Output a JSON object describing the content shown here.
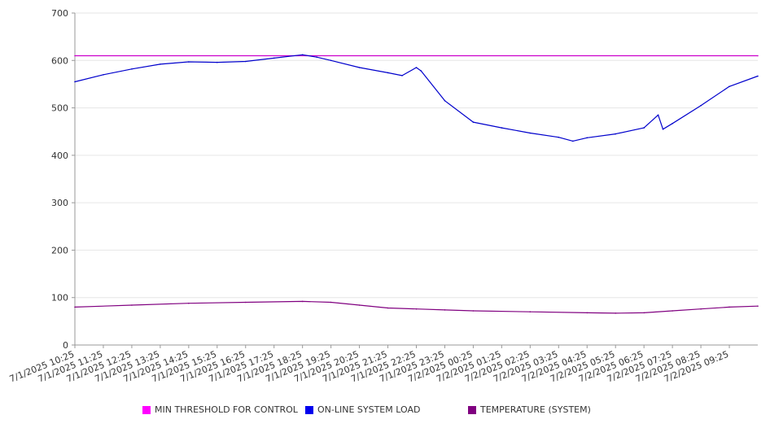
{
  "chart_data": {
    "type": "line",
    "title": "",
    "xlabel": "",
    "ylabel": "",
    "ylim": [
      0,
      700
    ],
    "y_ticks": [
      "0",
      "100",
      "200",
      "300",
      "400",
      "500",
      "600",
      "700"
    ],
    "x_ticks": [
      "7/1/2025 10:25",
      "7/1/2025 11:25",
      "7/1/2025 12:25",
      "7/1/2025 13:25",
      "7/1/2025 14:25",
      "7/1/2025 15:25",
      "7/1/2025 16:25",
      "7/1/2025 17:25",
      "7/1/2025 18:25",
      "7/1/2025 19:25",
      "7/1/2025 20:25",
      "7/1/2025 21:25",
      "7/1/2025 22:25",
      "7/1/2025 23:25",
      "7/2/2025 00:25",
      "7/2/2025 01:25",
      "7/2/2025 02:25",
      "7/2/2025 03:25",
      "7/2/2025 04:25",
      "7/2/2025 05:25",
      "7/2/2025 06:25",
      "7/2/2025 07:25",
      "7/2/2025 08:25",
      "7/2/2025 09:25"
    ],
    "x_start": "7/1/2025 10:25",
    "x_end": "7/2/2025 10:25",
    "grid": true,
    "legend_position": "bottom",
    "series": [
      {
        "name": "MIN THRESHOLD FOR CONTROL",
        "color": "#cc00cc",
        "x": [
          "7/1/2025 10:25",
          "7/2/2025 10:25"
        ],
        "values": [
          610,
          610
        ]
      },
      {
        "name": "ON-LINE SYSTEM LOAD",
        "color": "#0000cc",
        "x": [
          "7/1/2025 10:25",
          "7/1/2025 11:25",
          "7/1/2025 12:25",
          "7/1/2025 13:25",
          "7/1/2025 14:25",
          "7/1/2025 15:25",
          "7/1/2025 16:25",
          "7/1/2025 17:25",
          "7/1/2025 18:25",
          "7/1/2025 18:55",
          "7/1/2025 19:25",
          "7/1/2025 20:25",
          "7/1/2025 21:25",
          "7/1/2025 21:55",
          "7/1/2025 22:25",
          "7/1/2025 22:35",
          "7/1/2025 23:25",
          "7/2/2025 00:25",
          "7/2/2025 01:25",
          "7/2/2025 02:25",
          "7/2/2025 03:25",
          "7/2/2025 03:55",
          "7/2/2025 04:25",
          "7/2/2025 05:25",
          "7/2/2025 06:25",
          "7/2/2025 06:55",
          "7/2/2025 07:05",
          "7/2/2025 07:25",
          "7/2/2025 08:25",
          "7/2/2025 09:25",
          "7/2/2025 10:25"
        ],
        "values": [
          555,
          570,
          582,
          592,
          597,
          596,
          598,
          605,
          612,
          607,
          600,
          585,
          574,
          568,
          585,
          578,
          515,
          470,
          458,
          447,
          438,
          430,
          437,
          445,
          458,
          485,
          455,
          467,
          505,
          545,
          567
        ]
      },
      {
        "name": "TEMPERATURE (SYSTEM)",
        "color": "#800080",
        "x": [
          "7/1/2025 10:25",
          "7/1/2025 12:25",
          "7/1/2025 14:25",
          "7/1/2025 16:25",
          "7/1/2025 18:25",
          "7/1/2025 19:25",
          "7/1/2025 20:25",
          "7/1/2025 21:25",
          "7/1/2025 22:25",
          "7/1/2025 23:25",
          "7/2/2025 00:25",
          "7/2/2025 02:25",
          "7/2/2025 04:25",
          "7/2/2025 05:25",
          "7/2/2025 06:25",
          "7/2/2025 07:25",
          "7/2/2025 08:25",
          "7/2/2025 09:25",
          "7/2/2025 10:25"
        ],
        "values": [
          80,
          84,
          88,
          90,
          92,
          90,
          84,
          78,
          76,
          74,
          72,
          70,
          68,
          67,
          68,
          72,
          76,
          80,
          82
        ]
      }
    ]
  }
}
